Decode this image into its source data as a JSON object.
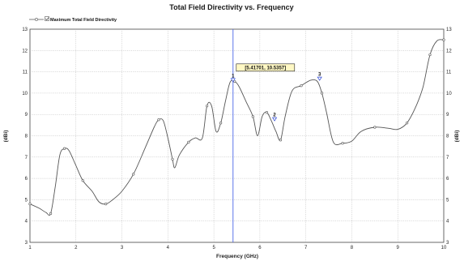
{
  "chart_data": {
    "type": "line",
    "title": "Total Field Directivity vs. Frequency",
    "xlabel": "Frequency (GHz)",
    "ylabel": "(dBi)",
    "xlim": [
      1,
      10
    ],
    "ylim": [
      3,
      13
    ],
    "x_ticks": [
      "1",
      "2",
      "3",
      "4",
      "5",
      "6",
      "7",
      "8",
      "9",
      "10"
    ],
    "y_ticks": [
      "3",
      "4",
      "5",
      "6",
      "7",
      "8",
      "9",
      "10",
      "11",
      "12",
      "13"
    ],
    "grid": true,
    "legend_position": "top-left",
    "series": [
      {
        "name": "Maximum Total Field Directivity",
        "color": "#555555",
        "x": [
          1.0,
          1.2,
          1.35,
          1.45,
          1.55,
          1.65,
          1.75,
          1.85,
          2.0,
          2.15,
          2.35,
          2.5,
          2.65,
          2.8,
          3.0,
          3.25,
          3.5,
          3.7,
          3.8,
          3.9,
          4.0,
          4.1,
          4.15,
          4.25,
          4.45,
          4.6,
          4.75,
          4.85,
          4.95,
          5.05,
          5.15,
          5.25,
          5.35,
          5.45,
          5.55,
          5.7,
          5.85,
          5.95,
          6.05,
          6.15,
          6.25,
          6.35,
          6.45,
          6.55,
          6.7,
          6.9,
          7.1,
          7.25,
          7.35,
          7.45,
          7.6,
          7.8,
          8.0,
          8.2,
          8.5,
          8.8,
          9.0,
          9.2,
          9.4,
          9.55,
          9.7,
          9.85,
          10.0
        ],
        "y": [
          4.8,
          4.6,
          4.4,
          4.35,
          5.6,
          7.1,
          7.4,
          7.3,
          6.6,
          5.9,
          5.4,
          4.9,
          4.8,
          5.0,
          5.4,
          6.2,
          7.4,
          8.4,
          8.75,
          8.7,
          7.9,
          6.9,
          6.5,
          7.1,
          7.7,
          7.9,
          7.9,
          9.4,
          9.4,
          8.2,
          8.6,
          9.6,
          10.5,
          10.55,
          10.3,
          9.6,
          8.9,
          8.0,
          8.9,
          9.1,
          8.7,
          8.2,
          7.8,
          8.9,
          10.1,
          10.35,
          10.6,
          10.55,
          10.0,
          9.1,
          7.7,
          7.65,
          7.75,
          8.2,
          8.4,
          8.35,
          8.3,
          8.6,
          9.4,
          10.3,
          11.8,
          12.45,
          12.5
        ]
      }
    ],
    "markers": [
      {
        "label": "1",
        "x": 5.41701,
        "y": 10.5357
      },
      {
        "label": "2",
        "x": 6.32,
        "y": 8.7
      },
      {
        "label": "3",
        "x": 7.3,
        "y": 10.6
      }
    ],
    "marker_readout": "[5.41701, 10.5357]"
  }
}
